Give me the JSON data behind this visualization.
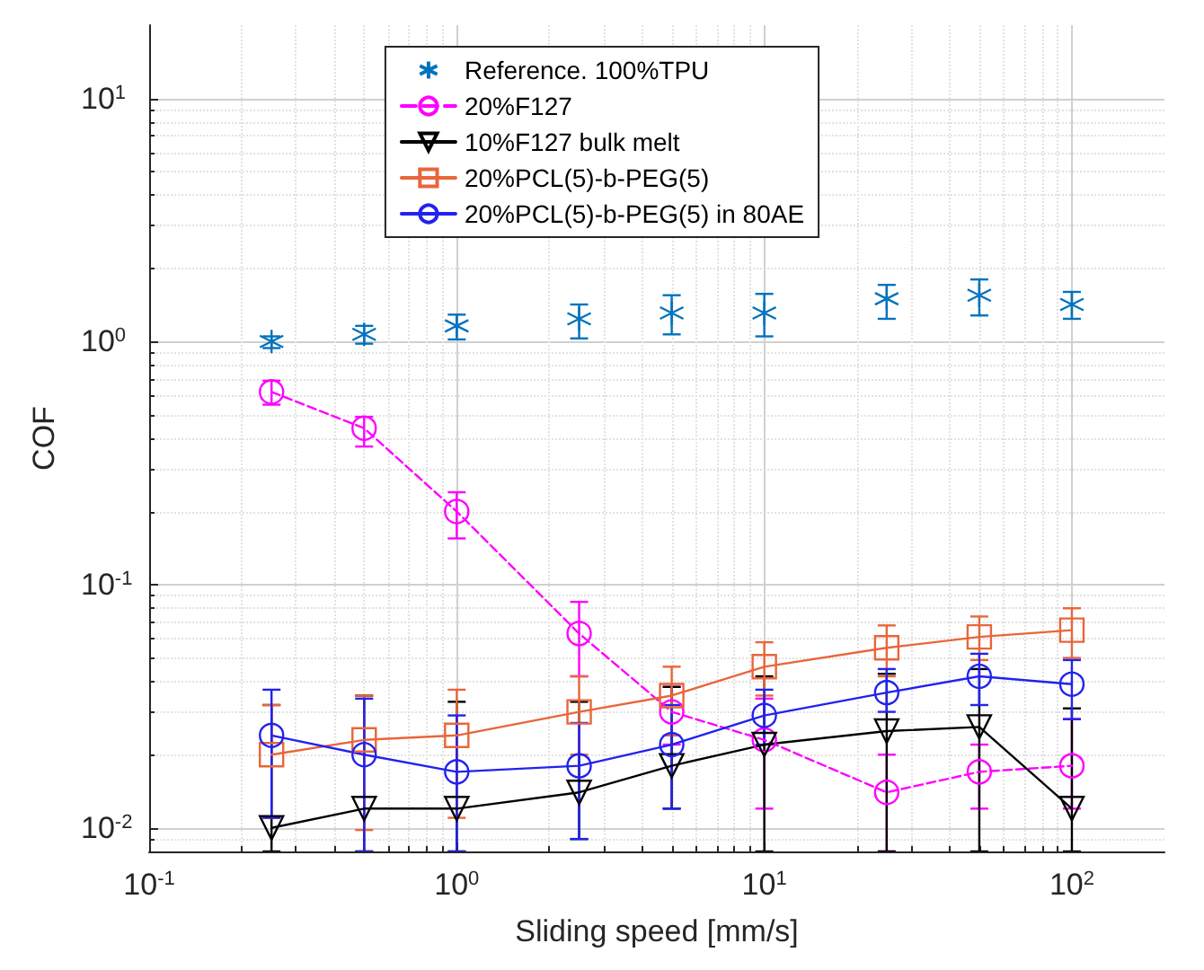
{
  "chart_data": {
    "type": "line",
    "xlabel": "Sliding speed [mm/s]",
    "ylabel": "COF",
    "log": "xy",
    "grid": true,
    "legend": "top",
    "x": [
      0.25,
      0.5,
      1,
      2.5,
      5,
      10,
      25,
      50,
      100
    ],
    "xlim": [
      0.1,
      200
    ],
    "ylim": [
      0.008,
      20
    ],
    "xticks": [
      {
        "value": 0.1,
        "label": "10$^{-1}$"
      },
      {
        "value": 1,
        "label": "10$^{0}$"
      },
      {
        "value": 10,
        "label": "10$^{1}$"
      },
      {
        "value": 100,
        "label": "10$^{2}$"
      }
    ],
    "yticks": [
      {
        "value": 0.01,
        "label": "10$^{-2}$"
      },
      {
        "value": 0.1,
        "label": "10$^{-1}$"
      },
      {
        "value": 1,
        "label": "10$^{0}$"
      },
      {
        "value": 10,
        "label": "10$^{1}$"
      }
    ],
    "series": [
      {
        "name": "Reference. 100%TPU",
        "type": "scatter",
        "color": "#0072bd",
        "marker": "cross",
        "values": [
          1.0,
          1.07,
          1.16,
          1.24,
          1.31,
          1.31,
          1.5,
          1.55,
          1.42
        ],
        "errors": [
          [
            0.94,
            1.05
          ],
          [
            0.98,
            1.16
          ],
          [
            1.02,
            1.29
          ],
          [
            1.03,
            1.42
          ],
          [
            1.07,
            1.55
          ],
          [
            1.05,
            1.57
          ],
          [
            1.24,
            1.71
          ],
          [
            1.28,
            1.8
          ],
          [
            1.24,
            1.6
          ]
        ]
      },
      {
        "name": "20%F127",
        "color": "#ff00ff",
        "marker": "circle",
        "line_style": "dashed",
        "values": [
          0.62,
          0.44,
          0.2,
          0.063,
          0.03,
          0.023,
          0.014,
          0.017,
          0.018
        ],
        "errors": [
          [
            0.55,
            0.69
          ],
          [
            0.37,
            0.49
          ],
          [
            0.155,
            0.24
          ],
          [
            0.042,
            0.085
          ],
          [
            0.022,
            0.038
          ],
          [
            0.012,
            0.034
          ],
          [
            0.008,
            0.02
          ],
          [
            0.012,
            0.022
          ],
          [
            0.012,
            0.028
          ]
        ]
      },
      {
        "name": "10%F127 bulk melt",
        "color": "#000000",
        "marker": "triangle",
        "line_style": "solid",
        "values": [
          0.01,
          0.012,
          0.012,
          0.014,
          0.018,
          0.022,
          0.025,
          0.026,
          0.012
        ],
        "errors": [
          [
            0.008,
            0.032
          ],
          [
            0.008,
            0.035
          ],
          [
            0.008,
            0.033
          ],
          [
            0.009,
            0.033
          ],
          [
            0.012,
            0.038
          ],
          [
            0.008,
            0.042
          ],
          [
            0.008,
            0.043
          ],
          [
            0.008,
            0.045
          ],
          [
            0.008,
            0.031
          ]
        ]
      },
      {
        "name": "20%PCL(5)-b-PEG(5)",
        "color": "#e8663a",
        "marker": "square",
        "line_style": "solid",
        "values": [
          0.02,
          0.023,
          0.024,
          0.03,
          0.035,
          0.046,
          0.055,
          0.061,
          0.065
        ],
        "errors": [
          [
            0.011,
            0.032
          ],
          [
            0.0098,
            0.035
          ],
          [
            0.011,
            0.037
          ],
          [
            0.02,
            0.042
          ],
          [
            0.024,
            0.046
          ],
          [
            0.035,
            0.058
          ],
          [
            0.042,
            0.068
          ],
          [
            0.049,
            0.074
          ],
          [
            0.05,
            0.08
          ]
        ]
      },
      {
        "name": "20%PCL(5)-b-PEG(5) in 80AE",
        "color": "#2222ee",
        "marker": "circle",
        "line_style": "solid",
        "values": [
          0.024,
          0.02,
          0.017,
          0.018,
          0.022,
          0.029,
          0.036,
          0.042,
          0.039
        ],
        "errors": [
          [
            0.011,
            0.037
          ],
          [
            0.008,
            0.034
          ],
          [
            0.008,
            0.029
          ],
          [
            0.009,
            0.027
          ],
          [
            0.012,
            0.032
          ],
          [
            0.022,
            0.037
          ],
          [
            0.03,
            0.045
          ],
          [
            0.032,
            0.052
          ],
          [
            0.028,
            0.049
          ]
        ]
      }
    ]
  }
}
